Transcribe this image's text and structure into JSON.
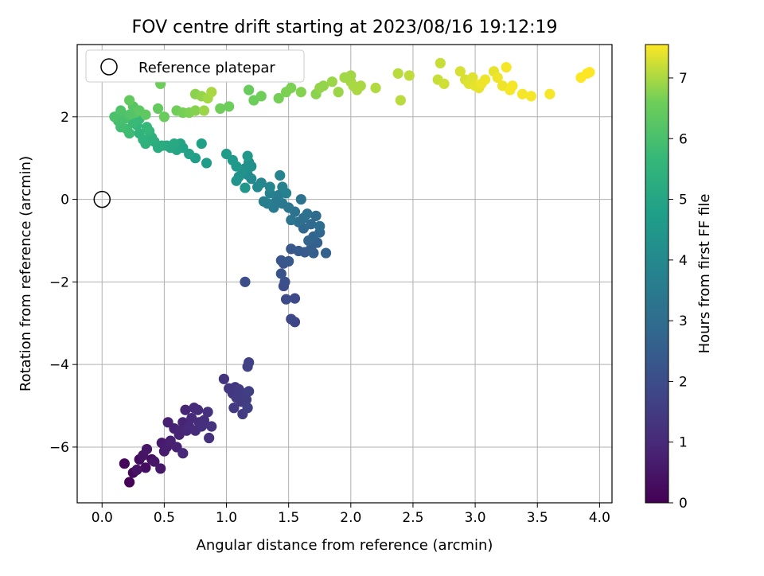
{
  "chart_data": {
    "type": "scatter",
    "title": "FOV centre drift starting at 2023/08/16 19:12:19",
    "xlabel": "Angular distance from reference (arcmin)",
    "ylabel": "Rotation from reference (arcmin)",
    "colorbar_label": "Hours from first FF file",
    "xlim": [
      -0.2,
      4.1
    ],
    "ylim": [
      -7.35,
      3.75
    ],
    "clim": [
      0,
      7.55
    ],
    "xticks": [
      "0.0",
      "0.5",
      "1.0",
      "1.5",
      "2.0",
      "2.5",
      "3.0",
      "3.5",
      "4.0"
    ],
    "yticks": [
      "−6",
      "−4",
      "−2",
      "0",
      "2"
    ],
    "cticks": [
      "0",
      "1",
      "2",
      "3",
      "4",
      "5",
      "6",
      "7"
    ],
    "grid": true,
    "colormap": "viridis",
    "legend": {
      "position": "top-left",
      "entries": [
        "Reference platepar"
      ]
    },
    "reference_point": {
      "x": 0.0,
      "y": 0.0
    },
    "points": [
      [
        0.22,
        -6.85,
        0.05
      ],
      [
        0.18,
        -6.4,
        0.15
      ],
      [
        0.25,
        -6.62,
        0.2
      ],
      [
        0.3,
        -6.3,
        0.25
      ],
      [
        0.35,
        -6.5,
        0.3
      ],
      [
        0.4,
        -6.3,
        0.35
      ],
      [
        0.28,
        -6.55,
        0.4
      ],
      [
        0.33,
        -6.2,
        0.45
      ],
      [
        0.36,
        -6.05,
        0.5
      ],
      [
        0.42,
        -6.35,
        0.5
      ],
      [
        0.47,
        -6.52,
        0.55
      ],
      [
        0.48,
        -5.9,
        0.6
      ],
      [
        0.5,
        -6.1,
        0.65
      ],
      [
        0.52,
        -6.0,
        0.7
      ],
      [
        0.55,
        -5.85,
        0.75
      ],
      [
        0.53,
        -5.4,
        0.75
      ],
      [
        0.58,
        -5.55,
        0.8
      ],
      [
        0.6,
        -6.0,
        0.8
      ],
      [
        0.62,
        -5.7,
        0.85
      ],
      [
        0.65,
        -5.4,
        0.85
      ],
      [
        0.63,
        -5.6,
        0.9
      ],
      [
        0.67,
        -5.1,
        0.9
      ],
      [
        0.68,
        -5.6,
        0.95
      ],
      [
        0.7,
        -5.5,
        1.0
      ],
      [
        0.72,
        -5.3,
        1.0
      ],
      [
        0.65,
        -6.15,
        0.95
      ],
      [
        0.75,
        -5.6,
        1.05
      ],
      [
        0.77,
        -5.1,
        1.1
      ],
      [
        0.78,
        -5.4,
        1.1
      ],
      [
        0.8,
        -5.5,
        1.15
      ],
      [
        0.82,
        -5.35,
        1.15
      ],
      [
        0.85,
        -5.15,
        1.2
      ],
      [
        0.86,
        -5.78,
        1.2
      ],
      [
        0.88,
        -5.5,
        1.25
      ],
      [
        0.74,
        -5.05,
        1.05
      ],
      [
        0.98,
        -4.35,
        1.3
      ],
      [
        1.02,
        -4.58,
        1.35
      ],
      [
        1.05,
        -4.7,
        1.4
      ],
      [
        1.07,
        -4.55,
        1.4
      ],
      [
        1.08,
        -4.8,
        1.45
      ],
      [
        1.1,
        -4.6,
        1.45
      ],
      [
        1.12,
        -4.9,
        1.5
      ],
      [
        1.13,
        -5.2,
        1.5
      ],
      [
        1.06,
        -5.05,
        1.45
      ],
      [
        1.15,
        -4.7,
        1.55
      ],
      [
        1.16,
        -4.85,
        1.55
      ],
      [
        1.17,
        -5.05,
        1.6
      ],
      [
        1.18,
        -4.65,
        1.6
      ],
      [
        1.17,
        -4.05,
        1.65
      ],
      [
        1.18,
        -3.95,
        1.65
      ],
      [
        1.55,
        -2.97,
        1.8
      ],
      [
        1.52,
        -2.9,
        1.85
      ],
      [
        1.55,
        -2.4,
        1.9
      ],
      [
        1.48,
        -2.42,
        1.95
      ],
      [
        1.46,
        -2.1,
        2.0
      ],
      [
        1.15,
        -2.0,
        2.05
      ],
      [
        1.47,
        -2.0,
        2.1
      ],
      [
        1.44,
        -1.8,
        2.15
      ],
      [
        1.46,
        -1.55,
        2.2
      ],
      [
        1.44,
        -1.48,
        2.25
      ],
      [
        1.5,
        -1.5,
        2.3
      ],
      [
        1.52,
        -1.2,
        2.35
      ],
      [
        1.58,
        -1.25,
        2.4
      ],
      [
        1.63,
        -1.28,
        2.45
      ],
      [
        1.68,
        -1.2,
        2.5
      ],
      [
        1.7,
        -1.3,
        2.55
      ],
      [
        1.73,
        -1.05,
        2.6
      ],
      [
        1.8,
        -1.3,
        2.65
      ],
      [
        1.66,
        -1.0,
        2.7
      ],
      [
        1.7,
        -0.9,
        2.75
      ],
      [
        1.75,
        -0.8,
        2.8
      ],
      [
        1.62,
        -0.7,
        2.85
      ],
      [
        1.68,
        -0.6,
        2.9
      ],
      [
        1.72,
        -0.4,
        2.95
      ],
      [
        1.75,
        -0.65,
        3.0
      ],
      [
        1.58,
        -0.55,
        3.05
      ],
      [
        1.62,
        -0.45,
        3.1
      ],
      [
        1.65,
        -0.35,
        3.15
      ],
      [
        1.55,
        -0.3,
        3.2
      ],
      [
        1.6,
        0.0,
        3.25
      ],
      [
        1.5,
        -0.2,
        3.3
      ],
      [
        1.52,
        -0.5,
        3.35
      ],
      [
        1.45,
        -0.1,
        3.4
      ],
      [
        1.4,
        -0.05,
        3.45
      ],
      [
        1.38,
        -0.2,
        3.5
      ],
      [
        1.42,
        0.1,
        3.55
      ],
      [
        1.33,
        -0.1,
        3.6
      ],
      [
        1.3,
        -0.05,
        3.65
      ],
      [
        1.35,
        0.15,
        3.7
      ],
      [
        1.48,
        0.15,
        3.75
      ],
      [
        1.45,
        0.3,
        3.8
      ],
      [
        1.43,
        0.58,
        3.85
      ],
      [
        1.35,
        0.3,
        3.9
      ],
      [
        1.28,
        0.4,
        3.95
      ],
      [
        1.25,
        0.3,
        4.0
      ],
      [
        1.2,
        0.5,
        4.05
      ],
      [
        1.17,
        0.6,
        4.1
      ],
      [
        1.15,
        0.75,
        4.15
      ],
      [
        1.18,
        0.9,
        4.2
      ],
      [
        1.2,
        0.8,
        4.25
      ],
      [
        1.13,
        0.7,
        4.3
      ],
      [
        1.1,
        0.55,
        4.35
      ],
      [
        1.08,
        0.45,
        4.4
      ],
      [
        1.15,
        0.28,
        4.45
      ],
      [
        1.17,
        1.05,
        4.5
      ],
      [
        1.08,
        0.8,
        4.55
      ],
      [
        1.05,
        0.95,
        4.6
      ],
      [
        1.0,
        1.1,
        4.65
      ],
      [
        0.84,
        0.88,
        4.7
      ],
      [
        0.75,
        1.0,
        4.75
      ],
      [
        0.8,
        1.35,
        4.8
      ],
      [
        0.7,
        1.1,
        4.85
      ],
      [
        0.65,
        1.25,
        4.9
      ],
      [
        0.63,
        1.35,
        4.95
      ],
      [
        0.6,
        1.2,
        5.0
      ],
      [
        0.55,
        1.25,
        5.05
      ],
      [
        0.52,
        1.3,
        5.1
      ],
      [
        0.58,
        1.35,
        5.15
      ],
      [
        0.48,
        1.3,
        5.2
      ],
      [
        0.45,
        1.25,
        5.25
      ],
      [
        0.42,
        1.4,
        5.3
      ],
      [
        0.4,
        1.5,
        5.35
      ],
      [
        0.35,
        1.35,
        5.4
      ],
      [
        0.33,
        1.45,
        5.45
      ],
      [
        0.3,
        1.6,
        5.5
      ],
      [
        0.38,
        1.65,
        5.55
      ],
      [
        0.28,
        1.8,
        5.6
      ],
      [
        0.36,
        1.75,
        5.65
      ],
      [
        0.3,
        1.95,
        5.7
      ],
      [
        0.25,
        1.85,
        5.75
      ],
      [
        0.22,
        1.6,
        5.8
      ],
      [
        0.2,
        1.7,
        5.85
      ],
      [
        0.15,
        1.75,
        5.9
      ],
      [
        0.13,
        1.9,
        5.95
      ],
      [
        0.18,
        1.95,
        6.0
      ],
      [
        0.1,
        2.0,
        6.05
      ],
      [
        0.15,
        2.15,
        6.1
      ],
      [
        0.22,
        2.05,
        6.15
      ],
      [
        0.27,
        2.1,
        6.2
      ],
      [
        0.25,
        2.25,
        6.25
      ],
      [
        0.3,
        2.15,
        6.3
      ],
      [
        0.35,
        2.05,
        6.35
      ],
      [
        0.22,
        2.4,
        6.4
      ],
      [
        0.45,
        2.2,
        6.45
      ],
      [
        0.5,
        2.0,
        6.5
      ],
      [
        0.47,
        2.8,
        6.55
      ],
      [
        0.6,
        2.15,
        6.6
      ],
      [
        0.65,
        2.1,
        6.65
      ],
      [
        0.7,
        2.1,
        6.7
      ],
      [
        0.75,
        2.15,
        6.75
      ],
      [
        0.75,
        2.55,
        6.8
      ],
      [
        0.8,
        2.5,
        6.85
      ],
      [
        0.82,
        2.15,
        6.9
      ],
      [
        0.85,
        2.45,
        6.95
      ],
      [
        0.88,
        2.6,
        7.0
      ],
      [
        0.95,
        2.2,
        6.6
      ],
      [
        1.02,
        2.25,
        6.55
      ],
      [
        1.18,
        2.65,
        6.5
      ],
      [
        1.22,
        2.4,
        6.55
      ],
      [
        1.28,
        2.5,
        6.6
      ],
      [
        1.42,
        2.45,
        6.65
      ],
      [
        1.48,
        2.6,
        6.7
      ],
      [
        1.52,
        2.7,
        6.7
      ],
      [
        1.6,
        2.6,
        6.75
      ],
      [
        1.72,
        2.55,
        6.8
      ],
      [
        1.75,
        2.7,
        6.85
      ],
      [
        1.78,
        2.75,
        6.85
      ],
      [
        1.85,
        2.85,
        6.9
      ],
      [
        1.9,
        2.6,
        6.9
      ],
      [
        1.95,
        2.95,
        6.95
      ],
      [
        2.0,
        2.85,
        6.95
      ],
      [
        2.02,
        2.75,
        7.0
      ],
      [
        2.05,
        2.65,
        7.0
      ],
      [
        2.08,
        2.75,
        7.0
      ],
      [
        2.2,
        2.7,
        7.05
      ],
      [
        2.0,
        3.0,
        6.95
      ],
      [
        2.38,
        3.05,
        7.1
      ],
      [
        2.4,
        2.4,
        7.1
      ],
      [
        2.47,
        3.0,
        7.15
      ],
      [
        2.7,
        2.9,
        7.2
      ],
      [
        2.72,
        3.3,
        7.2
      ],
      [
        2.75,
        2.8,
        7.25
      ],
      [
        2.88,
        3.1,
        7.3
      ],
      [
        2.92,
        2.9,
        7.3
      ],
      [
        2.95,
        2.8,
        7.35
      ],
      [
        2.98,
        2.95,
        7.35
      ],
      [
        3.0,
        2.75,
        7.4
      ],
      [
        3.03,
        2.7,
        7.4
      ],
      [
        3.05,
        2.8,
        7.45
      ],
      [
        3.08,
        2.9,
        7.45
      ],
      [
        3.15,
        3.1,
        7.4
      ],
      [
        3.18,
        2.95,
        7.45
      ],
      [
        3.22,
        2.75,
        7.45
      ],
      [
        3.25,
        3.2,
        7.5
      ],
      [
        3.28,
        2.65,
        7.5
      ],
      [
        3.3,
        2.75,
        7.5
      ],
      [
        3.38,
        2.55,
        7.5
      ],
      [
        3.45,
        2.5,
        7.5
      ],
      [
        3.6,
        2.55,
        7.5
      ],
      [
        3.85,
        2.95,
        7.55
      ],
      [
        3.9,
        3.05,
        7.55
      ],
      [
        3.92,
        3.08,
        7.55
      ]
    ]
  }
}
